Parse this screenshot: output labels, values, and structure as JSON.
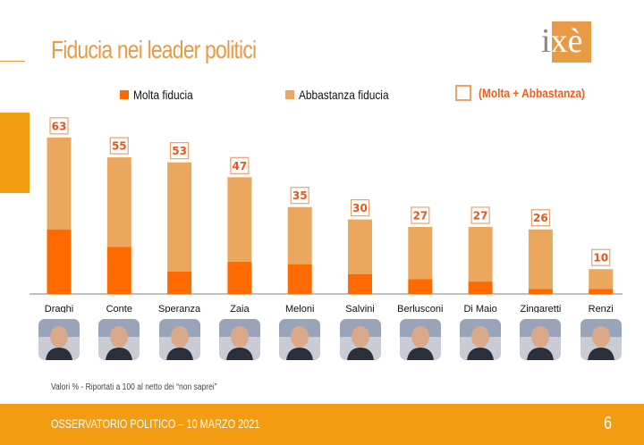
{
  "header": {
    "title": "Fiducia nei leader politici",
    "logo_text": "ixè"
  },
  "legend": {
    "molta": "Molta fiducia",
    "abbastanza": "Abbastanza fiducia",
    "total": "(Molta + Abbastanza)"
  },
  "colors": {
    "molta": "#ff6a00",
    "abbastanza": "#eba75e",
    "accent": "#f39c12",
    "label": "#e8561a"
  },
  "chart_data": {
    "type": "bar",
    "stacked": true,
    "title": "Fiducia nei leader politici",
    "xlabel": "",
    "ylabel": "",
    "ylim": [
      0,
      63
    ],
    "categories": [
      "Draghi",
      "Conte",
      "Speranza",
      "Zaia",
      "Meloni",
      "Salvini",
      "Berlusconi",
      "Di Maio",
      "Zingaretti",
      "Renzi"
    ],
    "series": [
      {
        "name": "Molta fiducia",
        "values": [
          26,
          19,
          9,
          13,
          12,
          8,
          6,
          5,
          2,
          2
        ]
      },
      {
        "name": "Abbastanza fiducia",
        "values": [
          37,
          36,
          44,
          34,
          23,
          22,
          21,
          22,
          24,
          8
        ]
      }
    ],
    "totals_label": "(Molta + Abbastanza)",
    "totals": [
      63,
      55,
      53,
      47,
      35,
      30,
      27,
      27,
      26,
      10
    ],
    "legend_position": "top",
    "grid": false
  },
  "photos": [
    "Draghi",
    "Conte",
    "Speranza",
    "Zaia",
    "Meloni",
    "Salvini",
    "Berlusconi",
    "Di Maio",
    "Zingaretti",
    "Renzi"
  ],
  "note": "Valori % - Riportati a 100 al netto dei “non saprei”",
  "footer": {
    "text": "OSSERVATORIO POLITICO – 10 MARZO 2021",
    "page": "6"
  }
}
